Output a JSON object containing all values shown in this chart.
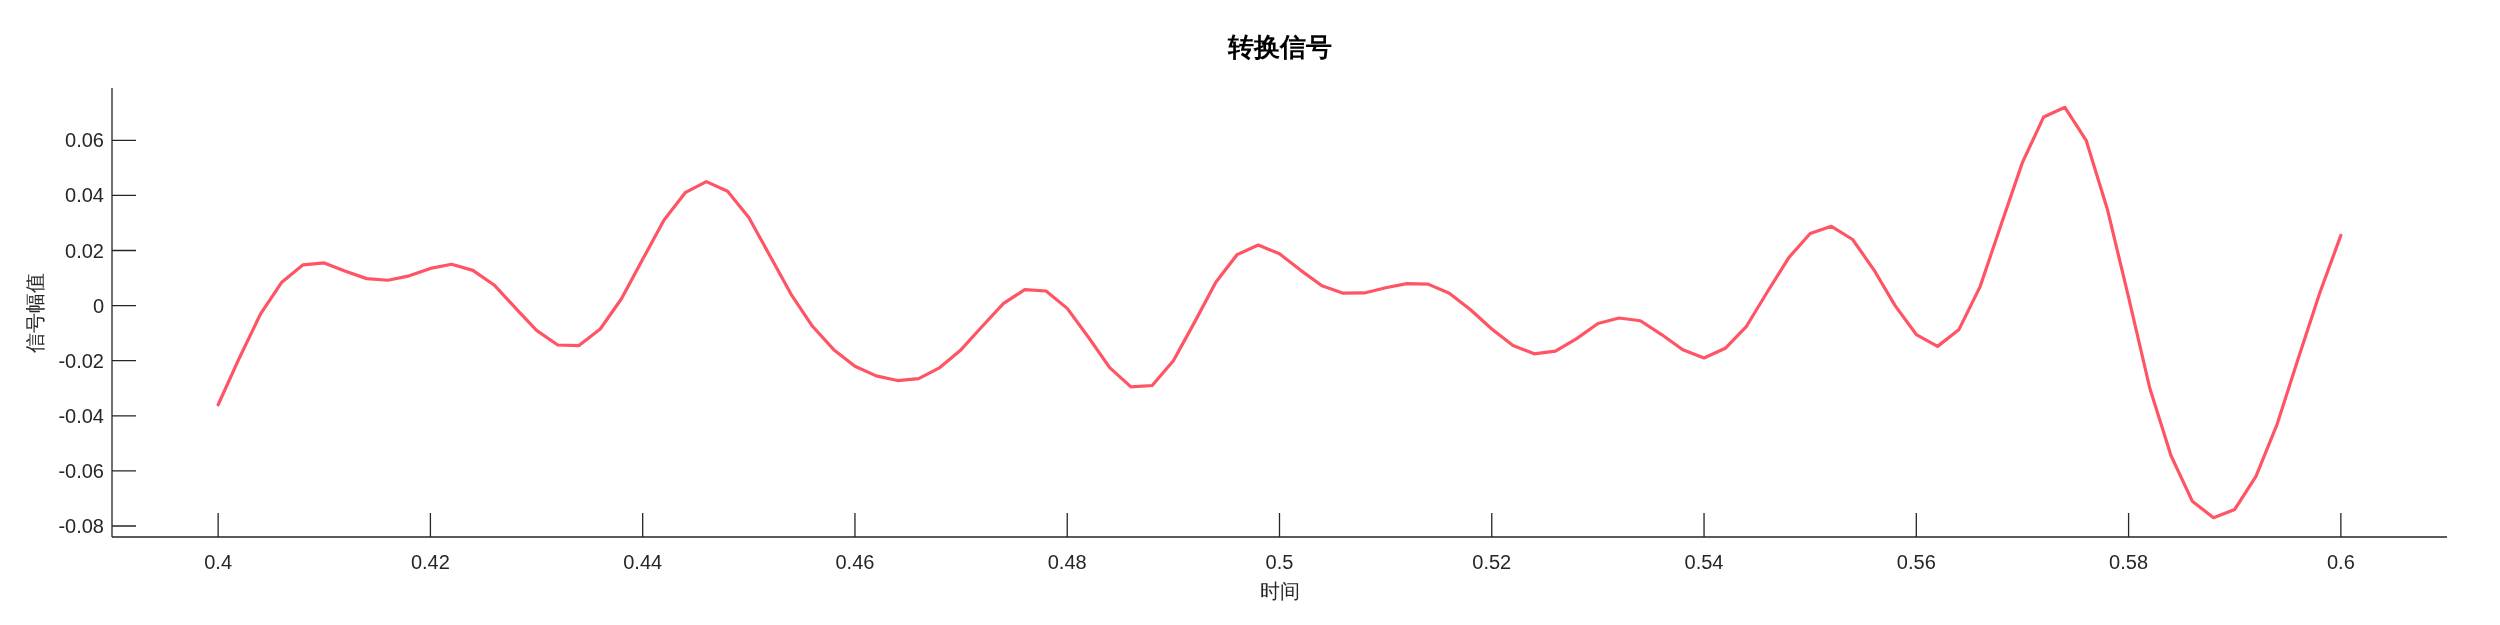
{
  "chart_data": {
    "type": "line",
    "title": "转换信号",
    "xlabel": "时间",
    "ylabel": "信号幅值",
    "xlim": [
      0.39,
      0.61
    ],
    "ylim": [
      -0.084,
      0.079
    ],
    "xticks": [
      0.4,
      0.42,
      0.44,
      0.46,
      0.48,
      0.5,
      0.52,
      0.54,
      0.56,
      0.58,
      0.6
    ],
    "yticks": [
      -0.08,
      -0.06,
      -0.04,
      -0.02,
      0,
      0.02,
      0.04,
      0.06
    ],
    "grid": false,
    "marker": "none",
    "line_style": "solid",
    "x": [
      0.4,
      0.402,
      0.404,
      0.406,
      0.408,
      0.41,
      0.412,
      0.414,
      0.416,
      0.418,
      0.42,
      0.422,
      0.424,
      0.426,
      0.428,
      0.43,
      0.432,
      0.434,
      0.436,
      0.438,
      0.44,
      0.442,
      0.444,
      0.446,
      0.448,
      0.45,
      0.452,
      0.454,
      0.456,
      0.458,
      0.46,
      0.462,
      0.464,
      0.466,
      0.468,
      0.47,
      0.472,
      0.474,
      0.476,
      0.478,
      0.48,
      0.482,
      0.484,
      0.486,
      0.488,
      0.49,
      0.492,
      0.494,
      0.496,
      0.498,
      0.5,
      0.502,
      0.504,
      0.506,
      0.508,
      0.51,
      0.512,
      0.514,
      0.516,
      0.518,
      0.52,
      0.522,
      0.524,
      0.526,
      0.528,
      0.53,
      0.532,
      0.534,
      0.536,
      0.538,
      0.54,
      0.542,
      0.544,
      0.546,
      0.548,
      0.55,
      0.552,
      0.554,
      0.556,
      0.558,
      0.56,
      0.562,
      0.564,
      0.566,
      0.568,
      0.57,
      0.572,
      0.574,
      0.576,
      0.578,
      0.58,
      0.582,
      0.584,
      0.586,
      0.588,
      0.59,
      0.592,
      0.594,
      0.596,
      0.598,
      0.6
    ],
    "series": [
      {
        "color": "#ff5464",
        "values": [
          -0.036,
          -0.019,
          -0.003,
          0.0085,
          0.0148,
          0.0155,
          0.0125,
          0.0098,
          0.0092,
          0.0108,
          0.0135,
          0.015,
          0.0128,
          0.0075,
          -0.0008,
          -0.009,
          -0.0143,
          -0.0145,
          -0.0085,
          0.0025,
          0.0168,
          0.031,
          0.041,
          0.045,
          0.0415,
          0.032,
          0.018,
          0.004,
          -0.0075,
          -0.016,
          -0.022,
          -0.0255,
          -0.0272,
          -0.0265,
          -0.0225,
          -0.016,
          -0.0075,
          0.0008,
          0.0058,
          0.0053,
          -0.001,
          -0.0115,
          -0.0225,
          -0.0295,
          -0.029,
          -0.02,
          -0.006,
          0.0085,
          0.0185,
          0.022,
          0.0188,
          0.0128,
          0.0072,
          0.0045,
          0.0046,
          0.0065,
          0.008,
          0.0078,
          0.0045,
          -0.0015,
          -0.0085,
          -0.0145,
          -0.0175,
          -0.0165,
          -0.012,
          -0.0065,
          -0.0045,
          -0.0055,
          -0.0105,
          -0.016,
          -0.019,
          -0.0155,
          -0.0075,
          0.0052,
          0.0175,
          0.0262,
          0.0288,
          0.024,
          0.013,
          0,
          -0.0105,
          -0.0148,
          -0.0088,
          0.0068,
          0.0295,
          0.052,
          0.0685,
          0.072,
          0.06,
          0.035,
          0.003,
          -0.03,
          -0.0545,
          -0.071,
          -0.077,
          -0.074,
          -0.062,
          -0.043,
          -0.019,
          0.0045,
          0.0255
        ]
      }
    ]
  }
}
